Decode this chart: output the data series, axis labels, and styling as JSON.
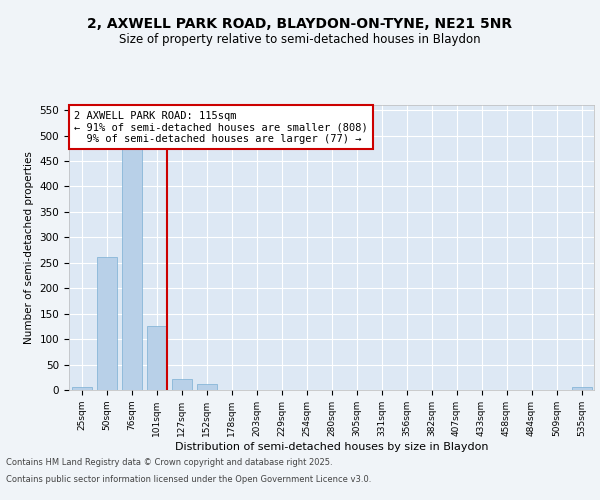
{
  "title_line1": "2, AXWELL PARK ROAD, BLAYDON-ON-TYNE, NE21 5NR",
  "title_line2": "Size of property relative to semi-detached houses in Blaydon",
  "categories": [
    "25sqm",
    "50sqm",
    "76sqm",
    "101sqm",
    "127sqm",
    "152sqm",
    "178sqm",
    "203sqm",
    "229sqm",
    "254sqm",
    "280sqm",
    "305sqm",
    "331sqm",
    "356sqm",
    "382sqm",
    "407sqm",
    "433sqm",
    "458sqm",
    "484sqm",
    "509sqm",
    "535sqm"
  ],
  "values": [
    5,
    262,
    508,
    125,
    22,
    12,
    0,
    0,
    0,
    0,
    0,
    0,
    0,
    0,
    0,
    0,
    0,
    0,
    0,
    0,
    5
  ],
  "bar_color": "#b8d0e8",
  "bar_edge_color": "#7aafd4",
  "vline_color": "#cc0000",
  "annotation_text": "2 AXWELL PARK ROAD: 115sqm\n← 91% of semi-detached houses are smaller (808)\n  9% of semi-detached houses are larger (77) →",
  "annotation_box_color": "#ffffff",
  "annotation_box_edge": "#cc0000",
  "xlabel": "Distribution of semi-detached houses by size in Blaydon",
  "ylabel": "Number of semi-detached properties",
  "ylim": [
    0,
    560
  ],
  "yticks": [
    0,
    50,
    100,
    150,
    200,
    250,
    300,
    350,
    400,
    450,
    500,
    550
  ],
  "background_color": "#dde8f4",
  "grid_color": "#ffffff",
  "fig_background": "#f0f4f8",
  "footer_line1": "Contains HM Land Registry data © Crown copyright and database right 2025.",
  "footer_line2": "Contains public sector information licensed under the Open Government Licence v3.0."
}
